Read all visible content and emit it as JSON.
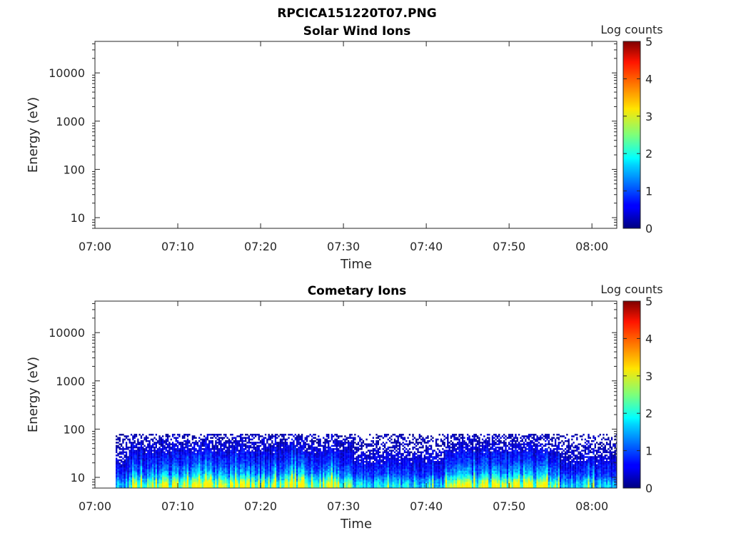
{
  "figure": {
    "title": "RPCICA151220T07.PNG"
  },
  "chart_data": [
    {
      "type": "heatmap",
      "title": "Solar Wind Ions",
      "xlabel": "Time",
      "ylabel": "Energy (eV)",
      "x_ticks": [
        "07:00",
        "07:10",
        "07:20",
        "07:30",
        "07:40",
        "07:50",
        "08:00"
      ],
      "x_range": [
        "07:00",
        "08:03"
      ],
      "y_scale": "log",
      "y_ticks": [
        "10",
        "100",
        "1000",
        "10000"
      ],
      "y_range": [
        6,
        45000
      ],
      "colorbar": {
        "label": "Log counts",
        "ticks": [
          "0",
          "1",
          "2",
          "3",
          "4",
          "5"
        ],
        "range": [
          0,
          5
        ],
        "colormap": "jet"
      },
      "data": "empty — no counts recorded"
    },
    {
      "type": "heatmap",
      "title": "Cometary Ions",
      "xlabel": "Time",
      "ylabel": "Energy (eV)",
      "x_ticks": [
        "07:00",
        "07:10",
        "07:20",
        "07:30",
        "07:40",
        "07:50",
        "08:00"
      ],
      "x_range": [
        "07:00",
        "08:03"
      ],
      "y_scale": "log",
      "y_ticks": [
        "10",
        "100",
        "1000",
        "10000"
      ],
      "y_range": [
        6,
        45000
      ],
      "colorbar": {
        "label": "Log counts",
        "ticks": [
          "0",
          "1",
          "2",
          "3",
          "4",
          "5"
        ],
        "range": [
          0,
          5
        ],
        "colormap": "jet"
      },
      "data_time_range": [
        "07:02.5",
        "08:03"
      ],
      "data_energy_range_eV": [
        6,
        80
      ],
      "profile": [
        {
          "energy_eV": 7,
          "typical_log_counts": 2.7
        },
        {
          "energy_eV": 9,
          "typical_log_counts": 2.0
        },
        {
          "energy_eV": 12,
          "typical_log_counts": 1.3
        },
        {
          "energy_eV": 20,
          "typical_log_counts": 0.8
        },
        {
          "energy_eV": 40,
          "typical_log_counts": 0.4
        },
        {
          "energy_eV": 75,
          "typical_log_counts": 0.2
        }
      ],
      "active_intervals": [
        [
          "07:04",
          "07:31"
        ],
        [
          "07:42",
          "07:56"
        ]
      ]
    }
  ]
}
